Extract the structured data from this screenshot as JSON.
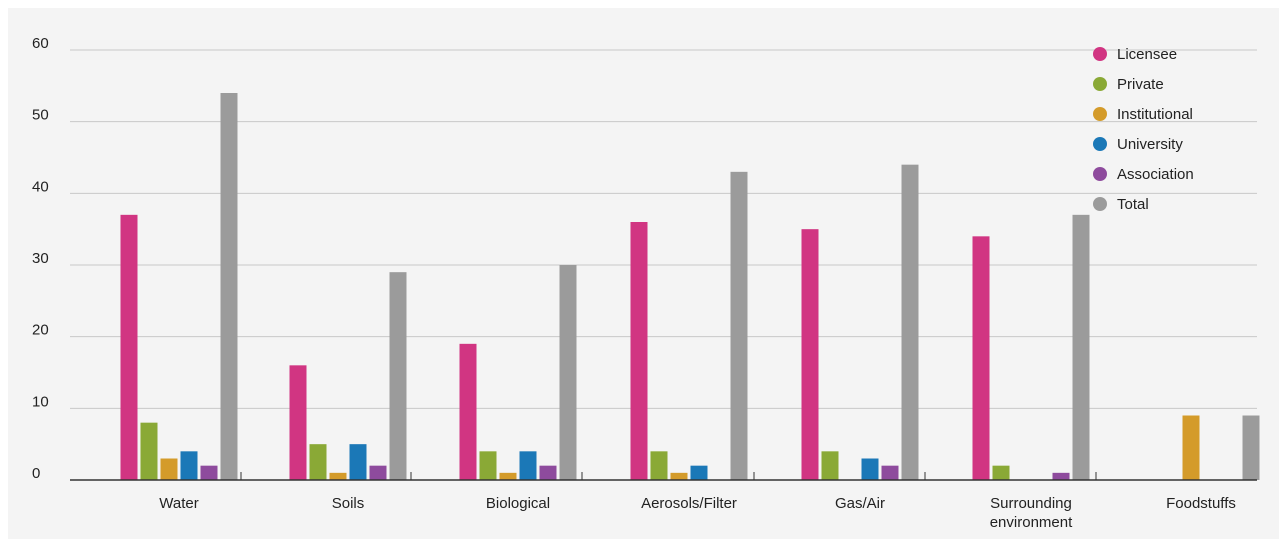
{
  "chart_data": {
    "type": "bar",
    "categories": [
      [
        "Water"
      ],
      [
        "Soils"
      ],
      [
        "Biological"
      ],
      [
        "Aerosols/Filter"
      ],
      [
        "Gas/Air"
      ],
      [
        "Surrounding",
        "environment"
      ],
      [
        "Foodstuffs"
      ]
    ],
    "series": [
      {
        "name": "Licensee",
        "color": "#d13582",
        "values": [
          37,
          16,
          19,
          36,
          35,
          34,
          0
        ]
      },
      {
        "name": "Private",
        "color": "#8aa936",
        "values": [
          8,
          5,
          4,
          4,
          4,
          2,
          0
        ]
      },
      {
        "name": "Institutional",
        "color": "#d49b2a",
        "values": [
          3,
          1,
          1,
          1,
          0,
          0,
          9
        ]
      },
      {
        "name": "University",
        "color": "#1b78b7",
        "values": [
          4,
          5,
          4,
          2,
          3,
          0,
          0
        ]
      },
      {
        "name": "Association",
        "color": "#8e4b9d",
        "values": [
          2,
          2,
          2,
          0,
          2,
          1,
          0
        ]
      },
      {
        "name": "Total",
        "color": "#9b9b9b",
        "values": [
          54,
          29,
          30,
          43,
          44,
          37,
          9
        ]
      }
    ],
    "ylim": [
      0,
      60
    ],
    "yticks": [
      0,
      10,
      20,
      30,
      40,
      50,
      60
    ],
    "grid": true,
    "legend_position": "top-right",
    "title": "",
    "xlabel": "",
    "ylabel": ""
  }
}
